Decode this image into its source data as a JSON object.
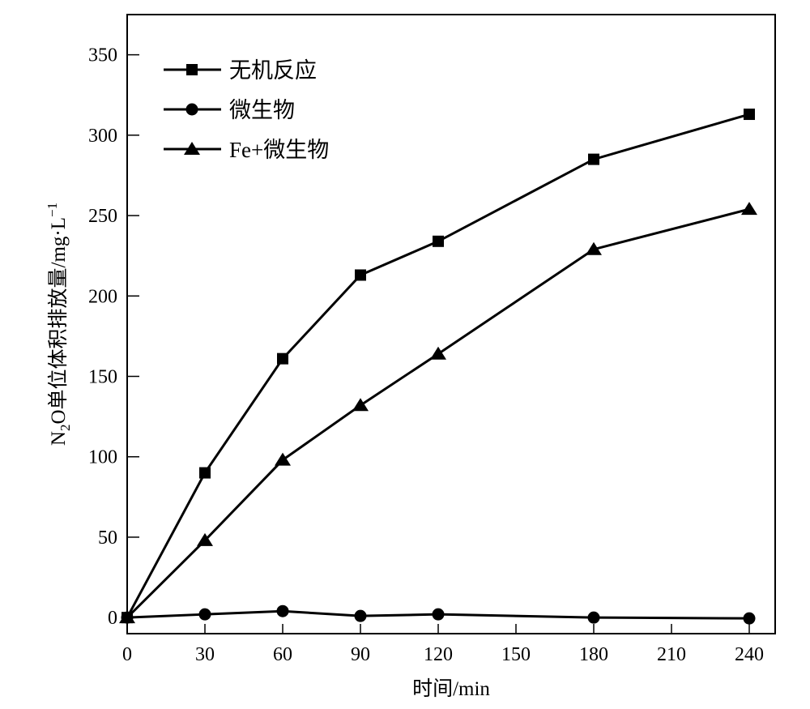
{
  "chart_data": {
    "type": "line",
    "xlabel": "时间/min",
    "ylabel": "N2O单位体积排放量/mg·L−1",
    "ylabel_parts": {
      "pre": "N",
      "sub": "2",
      "mid": "O单位体积排放量/mg·L",
      "sup": "−1"
    },
    "xlim": [
      0,
      250
    ],
    "ylim": [
      -10,
      375
    ],
    "xticks": [
      0,
      30,
      60,
      90,
      120,
      150,
      180,
      210,
      240
    ],
    "yticks": [
      0,
      50,
      100,
      150,
      200,
      250,
      300,
      350
    ],
    "grid": false,
    "legend": "top-left",
    "x": [
      0,
      30,
      60,
      90,
      120,
      180,
      240
    ],
    "series": [
      {
        "name": "无机反应",
        "marker": "square",
        "values": [
          0,
          90,
          161,
          213,
          234,
          285,
          313
        ]
      },
      {
        "name": "微生物",
        "marker": "circle",
        "values": [
          0,
          2,
          4,
          1,
          2,
          0,
          -0.5
        ]
      },
      {
        "name": "Fe+微生物",
        "marker": "triangle",
        "values": [
          0,
          48,
          98,
          132,
          164,
          229,
          254
        ]
      }
    ],
    "color": "#000000"
  }
}
